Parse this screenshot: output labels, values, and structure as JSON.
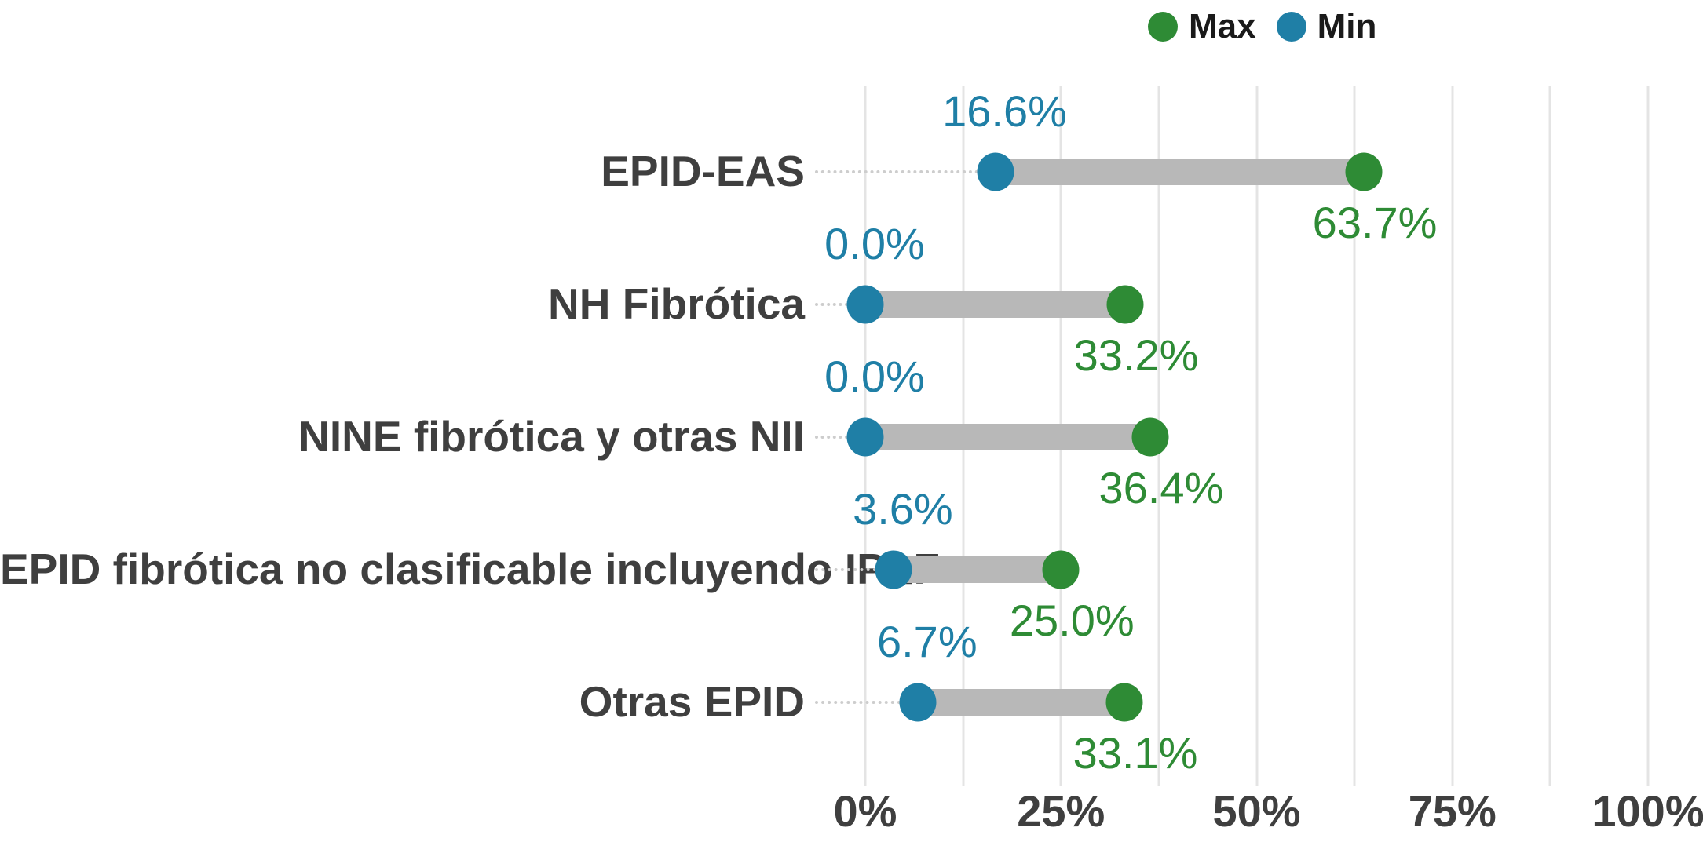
{
  "legend": {
    "max_label": "Max",
    "min_label": "Min"
  },
  "colors": {
    "max": "#2e8b35",
    "min": "#1f7fa6",
    "bar": "#b8b8b8",
    "grid": "#e4e4e4",
    "leader": "#cdcdcd",
    "text": "#3f3f3f"
  },
  "chart_data": {
    "type": "dumbbell",
    "orientation": "horizontal",
    "title": "",
    "xlabel": "",
    "ylabel": "",
    "categories": [
      "EPID-EAS",
      "NH Fibrótica",
      "NINE fibrótica y otras NII",
      "EPID fibrótica no clasificable incluyendo IPAF",
      "Otras EPID"
    ],
    "series": [
      {
        "name": "Min",
        "values": [
          16.6,
          0.0,
          0.0,
          3.6,
          6.7
        ],
        "color": "#1f7fa6"
      },
      {
        "name": "Max",
        "values": [
          63.7,
          33.2,
          36.4,
          25.0,
          33.1
        ],
        "color": "#2e8b35"
      }
    ],
    "value_labels": {
      "min": [
        "16.6%",
        "0.0%",
        "0.0%",
        "3.6%",
        "6.7%"
      ],
      "max": [
        "63.7%",
        "33.2%",
        "36.4%",
        "25.0%",
        "33.1%"
      ]
    },
    "x_ticks": [
      "0%",
      "25%",
      "50%",
      "75%",
      "100%"
    ],
    "x_tick_values": [
      0,
      25,
      50,
      75,
      100
    ],
    "grid_values": [
      0,
      12.5,
      25,
      37.5,
      50,
      62.5,
      75,
      87.5,
      100
    ],
    "xlim": [
      0,
      100
    ],
    "grid": "vertical minor gridlines every 12.5%",
    "legend_position": "top-right",
    "value_label_placement": {
      "min": "above marker",
      "max": "below marker"
    }
  }
}
